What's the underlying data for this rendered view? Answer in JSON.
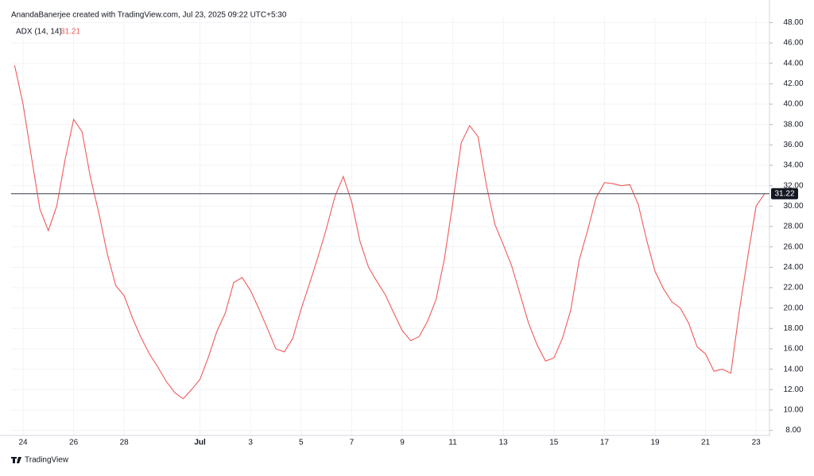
{
  "chart_data": {
    "type": "line",
    "title": "AnandaBanerjee created with TradingView.com, Jul 23, 2025 09:22 UTC+5:30",
    "brand": "TradingView",
    "categories": [
      null,
      "24",
      null,
      null,
      null,
      null,
      null,
      "26",
      null,
      null,
      null,
      null,
      null,
      "28",
      null,
      null,
      null,
      null,
      null,
      null,
      null,
      null,
      "Jul",
      null,
      null,
      null,
      null,
      null,
      "3",
      null,
      null,
      null,
      null,
      null,
      "5",
      null,
      null,
      null,
      null,
      null,
      "7",
      null,
      null,
      null,
      null,
      null,
      "9",
      null,
      null,
      null,
      null,
      null,
      "11",
      null,
      null,
      null,
      null,
      null,
      "13",
      null,
      null,
      null,
      null,
      null,
      "15",
      null,
      null,
      null,
      null,
      null,
      "17",
      null,
      null,
      null,
      null,
      null,
      "19",
      null,
      null,
      null,
      null,
      null,
      "21",
      null,
      null,
      null,
      null,
      null,
      "23",
      null
    ],
    "series": [
      {
        "name": "ADX (14, 14)",
        "color": "#f05a5a",
        "last_value": 31.21,
        "values": [
          43.8,
          40,
          34.8,
          29.7,
          27.6,
          30,
          34.6,
          38.5,
          37.3,
          32.8,
          29.3,
          25.3,
          22.2,
          21.2,
          19,
          17.1,
          15.5,
          14.2,
          12.8,
          11.7,
          11.1,
          12,
          13,
          15.2,
          17.7,
          19.5,
          22.5,
          23,
          21.7,
          19.9,
          18,
          16,
          15.7,
          17,
          19.9,
          22.4,
          25,
          27.8,
          30.9,
          32.9,
          30.4,
          26.5,
          24,
          22.6,
          21.3,
          19.5,
          17.8,
          16.8,
          17.2,
          18.7,
          20.8,
          24.8,
          30.3,
          36.2,
          37.9,
          36.8,
          32,
          28.2,
          26.2,
          24.1,
          21.3,
          18.5,
          16.4,
          14.8,
          15.1,
          17,
          19.8,
          24.7,
          27.6,
          30.8,
          32.3,
          32.2,
          32,
          32.1,
          30.2,
          26.7,
          23.6,
          21.9,
          20.6,
          20,
          18.5,
          16.2,
          15.5,
          13.8,
          14,
          13.6,
          19.7,
          25,
          30,
          31.2
        ]
      }
    ],
    "price_line": 31.22,
    "ylim": [
      7.5,
      48.5
    ],
    "yticks": [
      {
        "value": 8,
        "label": "8.00"
      },
      {
        "value": 10,
        "label": "10.00"
      },
      {
        "value": 12,
        "label": "12.00"
      },
      {
        "value": 14,
        "label": "14.00"
      },
      {
        "value": 16,
        "label": "16.00"
      },
      {
        "value": 18,
        "label": "18.00"
      },
      {
        "value": 20,
        "label": "20.00"
      },
      {
        "value": 22,
        "label": "22.00"
      },
      {
        "value": 24,
        "label": "24.00"
      },
      {
        "value": 26,
        "label": "26.00"
      },
      {
        "value": 28,
        "label": "28.00"
      },
      {
        "value": 30,
        "label": "30.00"
      },
      {
        "value": 32,
        "label": "32.00"
      },
      {
        "value": 34,
        "label": "34.00"
      },
      {
        "value": 36,
        "label": "36.00"
      },
      {
        "value": 38,
        "label": "38.00"
      },
      {
        "value": 40,
        "label": "40.00"
      },
      {
        "value": 42,
        "label": "42.00"
      },
      {
        "value": 44,
        "label": "44.00"
      },
      {
        "value": 46,
        "label": "46.00"
      },
      {
        "value": 48,
        "label": "48.00"
      }
    ],
    "grid": true
  }
}
